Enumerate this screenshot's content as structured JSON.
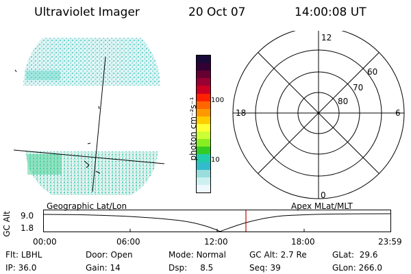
{
  "header": {
    "instrument": "Ultraviolet Imager",
    "date": "20 Oct 07",
    "time": "14:00:08 UT"
  },
  "colorbar": {
    "unit_label": "photon cm⁻²s⁻¹",
    "ticks": [
      "100",
      "10"
    ],
    "colors": [
      "#1a0a3a",
      "#330033",
      "#660033",
      "#990033",
      "#cc0022",
      "#ff2200",
      "#ff6600",
      "#ff9900",
      "#ffcc00",
      "#ffff33",
      "#ccff33",
      "#88ee22",
      "#33cc22",
      "#22ccaa",
      "#33bbcc",
      "#99dddd",
      "#ccf0f0",
      "#f0f8ff"
    ]
  },
  "polar_plot": {
    "mlt_labels": {
      "top": "12",
      "bottom": "0",
      "left": "18",
      "right": "6"
    },
    "lat_labels": [
      "60",
      "70",
      "80"
    ]
  },
  "altitude_plot": {
    "left_label": "Geographic Lat/Lon",
    "right_label": "Apex MLat/MLT",
    "axis_label": "GC Alt",
    "y_ticks": [
      "9.0",
      "1.8"
    ],
    "x_ticks": [
      "00:00",
      "06:00",
      "12:00",
      "18:00",
      "23:59"
    ]
  },
  "info": {
    "filter_label": "Flt:",
    "filter_value": "LBHL",
    "door_label": "Door:",
    "door_value": "Open",
    "mode_label": "Mode:",
    "mode_value": "Normal",
    "gcalt_label": "GC Alt:",
    "gcalt_value": "2.7 Re",
    "glat_label": "GLat:",
    "glat_value": "29.6",
    "ip_label": "IP:",
    "ip_value": "36.0",
    "gain_label": "Gain:",
    "gain_value": "14",
    "dsp_label": "Dsp:",
    "dsp_value": "8.5",
    "seq_label": "Seq:",
    "seq_value": "39",
    "glon_label": "GLon:",
    "glon_value": "266.0"
  }
}
